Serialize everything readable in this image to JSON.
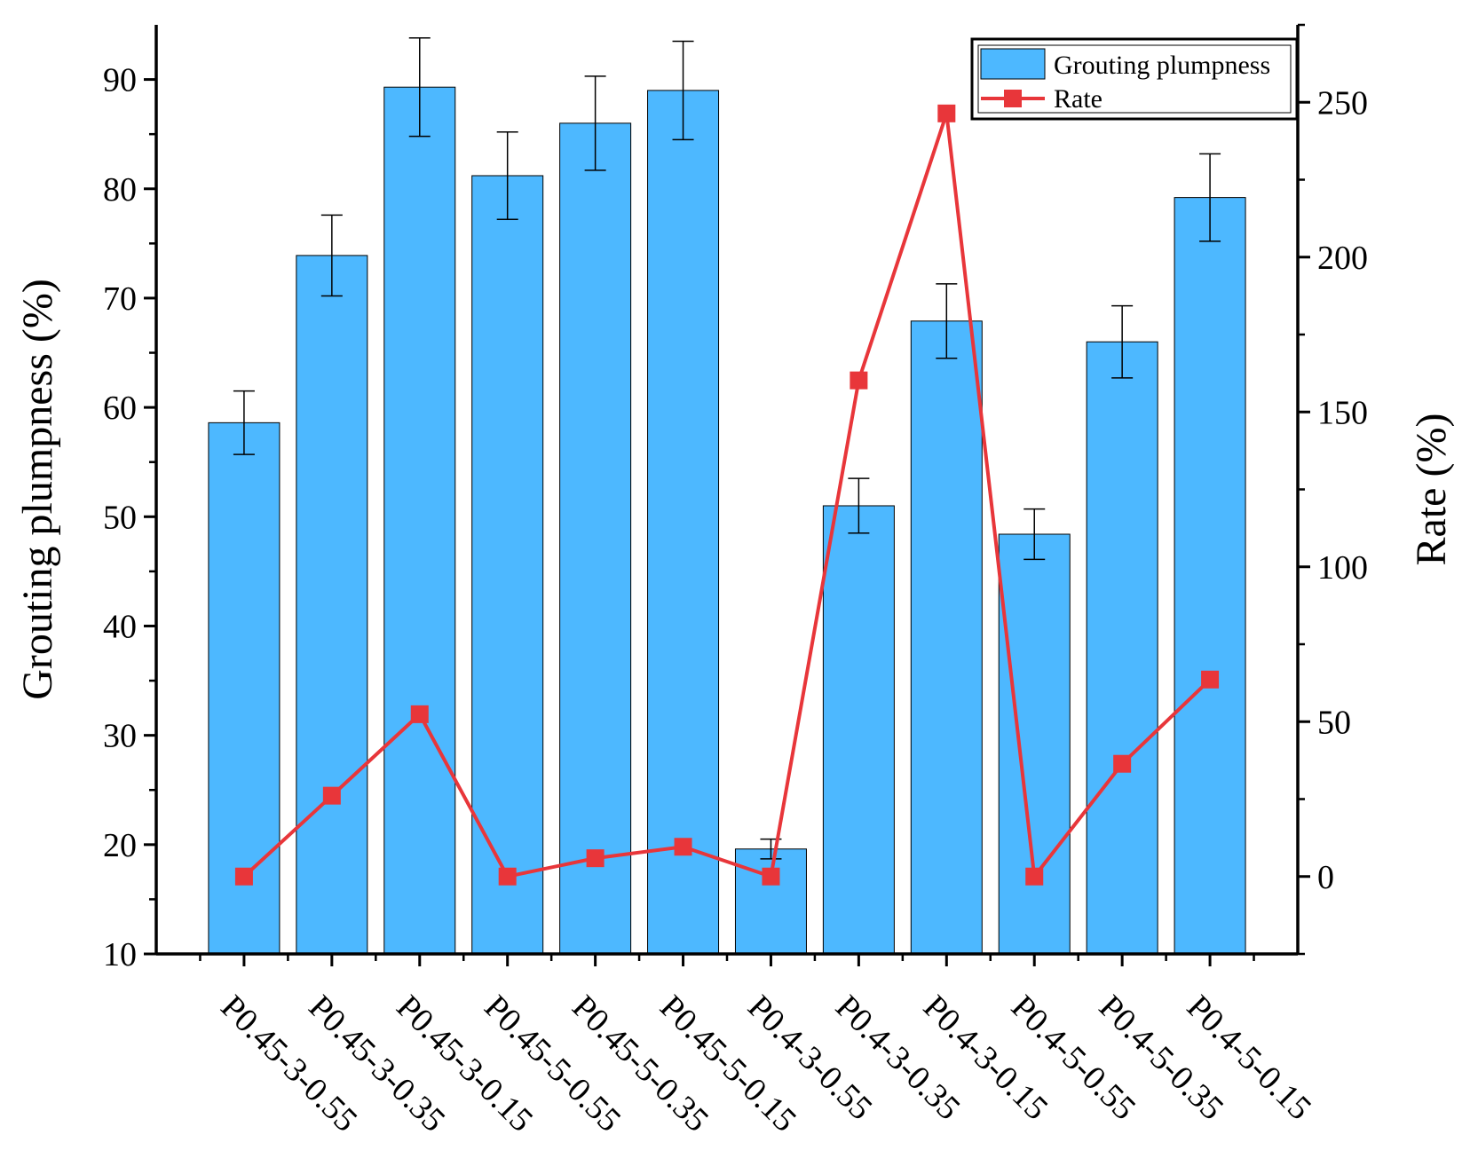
{
  "chart_data": {
    "type": "bar",
    "categories": [
      "P0.45-3-0.55",
      "P0.45-3-0.35",
      "P0.45-3-0.15",
      "P0.45-5-0.55",
      "P0.45-5-0.35",
      "P0.45-5-0.15",
      "P0.4-3-0.55",
      "P0.4-3-0.35",
      "P0.4-3-0.15",
      "P0.4-5-0.55",
      "P0.4-5-0.35",
      "P0.4-5-0.15"
    ],
    "series": [
      {
        "name": "Grouting plumpness",
        "type": "bar",
        "axis": "left",
        "values": [
          58.6,
          73.9,
          89.3,
          81.2,
          86.0,
          89.0,
          19.6,
          51.0,
          67.9,
          48.4,
          66.0,
          79.2
        ],
        "error": [
          2.9,
          3.7,
          4.5,
          4.0,
          4.3,
          4.5,
          0.9,
          2.5,
          3.4,
          2.3,
          3.3,
          4.0
        ],
        "color": "#4db8ff"
      },
      {
        "name": "Rate",
        "type": "line",
        "axis": "right",
        "values": [
          0,
          26.1,
          52.4,
          0,
          5.9,
          9.6,
          0,
          160.2,
          246.4,
          0,
          36.4,
          63.6
        ],
        "color": "#e8363a"
      }
    ],
    "ylabel": "Grouting plumpness (%)",
    "y2label": "Rate (%)",
    "ylim": [
      10,
      95
    ],
    "y2lim": [
      -25,
      275
    ],
    "yticks": [
      10,
      20,
      30,
      40,
      50,
      60,
      70,
      80,
      90
    ],
    "y2ticks": [
      0,
      50,
      100,
      150,
      200,
      250
    ],
    "legend_position": "top-right",
    "grid": false
  }
}
